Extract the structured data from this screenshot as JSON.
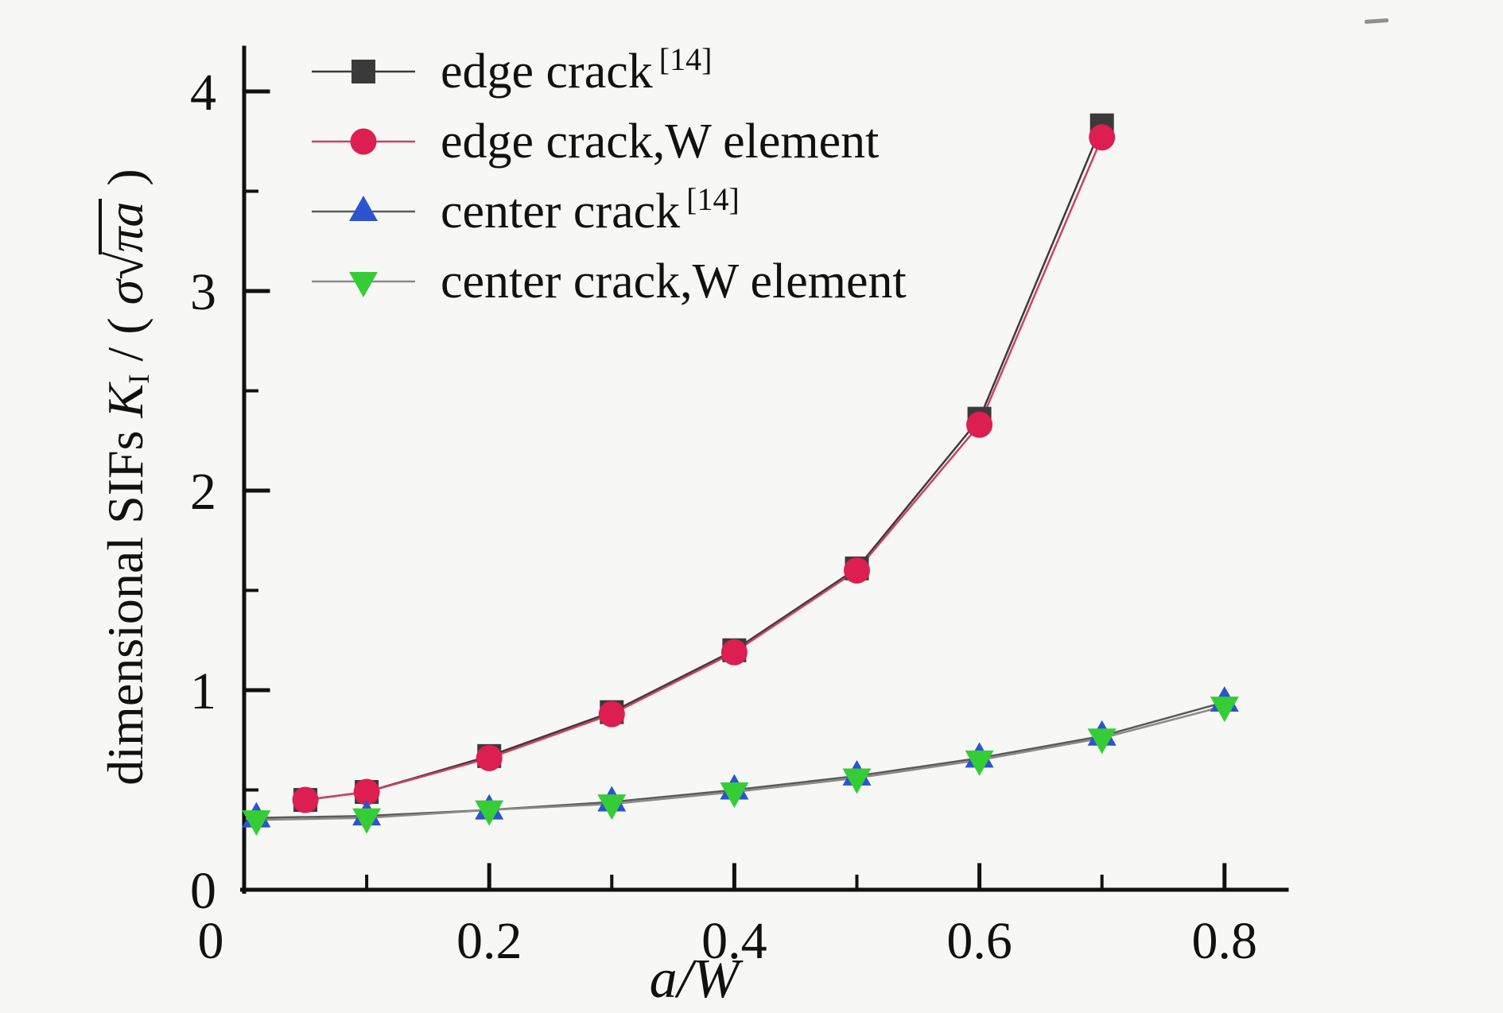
{
  "figure": {
    "background": "#f7f7f6",
    "x_axis_label": "a/W",
    "y_axis_label_text": "dimensional SIFs K I / ( σ√πa )",
    "y_axis_label_parts": {
      "prefix": "dimensional SIFs ",
      "K": "K",
      "K_sub": "I",
      "divider": " / ( ",
      "sigma": "σ",
      "radical": "√",
      "radicand": "πa",
      "suffix": " )"
    }
  },
  "chart_data": {
    "type": "line",
    "title": "",
    "xlabel": "a/W",
    "ylabel": "dimensional SIFs K_I / (σ√(πa))",
    "xlim": [
      0,
      0.851
    ],
    "ylim": [
      0,
      4.22
    ],
    "grid": false,
    "legend_position": "top-left",
    "x_major_ticks": [
      0,
      0.2,
      0.4,
      0.6,
      0.8
    ],
    "x_major_tick_labels": [
      "0",
      "0.2",
      "0.4",
      "0.6",
      "0.8"
    ],
    "x_minor_ticks": [
      0.1,
      0.3,
      0.5,
      0.7
    ],
    "y_major_ticks": [
      0,
      1,
      2,
      3,
      4
    ],
    "y_major_tick_labels": [
      "0",
      "1",
      "2",
      "3",
      "4"
    ],
    "y_minor_ticks": [
      0.5,
      1.5,
      2.5,
      3.5
    ],
    "series": [
      {
        "name": "edge crack [14]",
        "legend_label": "edge crack",
        "legend_sup": "[14]",
        "marker": "square",
        "marker_color": "#3a3a3a",
        "line_color": "#3a3a3a",
        "x": [
          0.05,
          0.1,
          0.2,
          0.3,
          0.4,
          0.5,
          0.6,
          0.7
        ],
        "y": [
          0.45,
          0.49,
          0.67,
          0.89,
          1.2,
          1.61,
          2.36,
          3.83
        ]
      },
      {
        "name": "edge crack,W element",
        "legend_label": "edge crack,W element",
        "legend_sup": "",
        "marker": "circle",
        "marker_color": "#dc1e50",
        "line_color": "#d04060",
        "x": [
          0.05,
          0.1,
          0.2,
          0.3,
          0.4,
          0.5,
          0.6,
          0.7
        ],
        "y": [
          0.45,
          0.49,
          0.66,
          0.88,
          1.19,
          1.6,
          2.33,
          3.77
        ]
      },
      {
        "name": "center crack [14]",
        "legend_label": "center crack",
        "legend_sup": "[14]",
        "marker": "triangle-up",
        "marker_color": "#2d53cf",
        "line_color": "#5a5a5a",
        "x": [
          0.01,
          0.1,
          0.2,
          0.3,
          0.4,
          0.5,
          0.6,
          0.7,
          0.8
        ],
        "y": [
          0.36,
          0.37,
          0.4,
          0.44,
          0.5,
          0.57,
          0.66,
          0.77,
          0.94
        ]
      },
      {
        "name": "center crack,W element",
        "legend_label": "center crack,W element",
        "legend_sup": "",
        "marker": "triangle-down",
        "marker_color": "#35cd35",
        "line_color": "#8a8a8a",
        "x": [
          0.01,
          0.1,
          0.2,
          0.3,
          0.4,
          0.5,
          0.6,
          0.7,
          0.8
        ],
        "y": [
          0.35,
          0.36,
          0.4,
          0.43,
          0.49,
          0.56,
          0.65,
          0.76,
          0.92
        ]
      }
    ]
  }
}
